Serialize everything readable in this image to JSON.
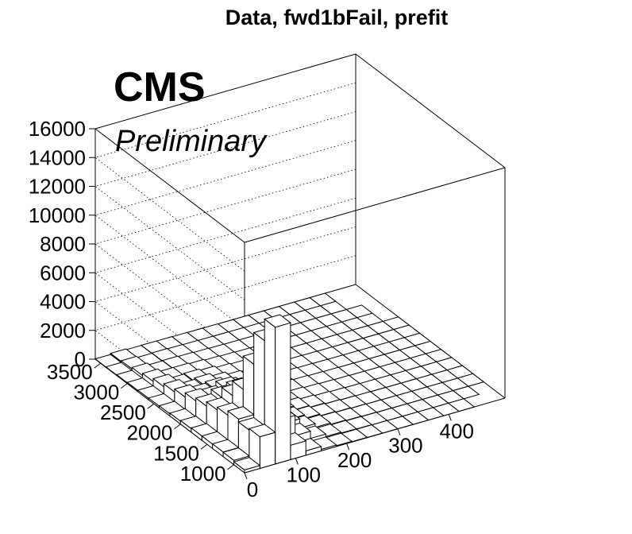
{
  "chart_data": {
    "type": "lego",
    "title": "Data, fwd1bFail, prefit",
    "labels": {
      "experiment": "CMS",
      "status": "Preliminary"
    },
    "zlim": [
      0,
      16000
    ],
    "zticks": [
      "0",
      "2000",
      "4000",
      "6000",
      "8000",
      "10000",
      "12000",
      "14000",
      "16000"
    ],
    "yticks": [
      "1000",
      "1500",
      "2000",
      "2500",
      "3000",
      "3500"
    ],
    "xticks": [
      "0",
      "100",
      "200",
      "300",
      "400"
    ],
    "x_bins": [
      0,
      30,
      60,
      90,
      120,
      150,
      180,
      210,
      240,
      270,
      300,
      330,
      360,
      390,
      420,
      450,
      480,
      510
    ],
    "y_bins": [
      800,
      1000,
      1200,
      1400,
      1600,
      1800,
      2000,
      2200,
      2400,
      2600,
      2800,
      3000,
      3200,
      3400,
      3600
    ],
    "counts": [
      [
        200,
        300,
        320,
        300,
        300,
        250,
        200,
        150,
        120,
        100,
        80,
        50,
        30,
        20
      ],
      [
        2200,
        2100,
        2300,
        2000,
        1800,
        1500,
        1300,
        1000,
        800,
        600,
        400,
        250,
        150,
        100
      ],
      [
        9500,
        8000,
        5800,
        3500,
        2500,
        1800,
        1200,
        800,
        500,
        300,
        200,
        100,
        60,
        40
      ],
      [
        1000,
        2200,
        3000,
        2700,
        2600,
        2000,
        1500,
        900,
        600,
        350,
        200,
        120,
        80,
        50
      ],
      [
        300,
        800,
        1100,
        1200,
        1300,
        1100,
        900,
        600,
        400,
        250,
        150,
        90,
        60,
        40
      ],
      [
        100,
        300,
        450,
        500,
        550,
        500,
        400,
        300,
        200,
        130,
        90,
        60,
        40,
        30
      ],
      [
        50,
        120,
        200,
        250,
        280,
        260,
        220,
        170,
        120,
        80,
        60,
        40,
        30,
        20
      ],
      [
        25,
        60,
        100,
        130,
        150,
        140,
        120,
        100,
        70,
        50,
        35,
        25,
        20,
        15
      ],
      [
        15,
        35,
        60,
        80,
        90,
        85,
        75,
        60,
        45,
        35,
        25,
        20,
        15,
        10
      ],
      [
        10,
        20,
        35,
        45,
        55,
        50,
        45,
        40,
        30,
        25,
        20,
        15,
        10,
        8
      ],
      [
        6,
        12,
        20,
        28,
        32,
        30,
        28,
        25,
        20,
        15,
        12,
        10,
        8,
        6
      ],
      [
        4,
        8,
        12,
        16,
        20,
        18,
        16,
        14,
        12,
        10,
        8,
        6,
        5,
        4
      ],
      [
        2,
        5,
        8,
        10,
        12,
        11,
        10,
        9,
        8,
        6,
        5,
        4,
        3,
        2
      ],
      [
        1,
        3,
        5,
        6,
        7,
        7,
        6,
        5,
        5,
        4,
        3,
        2,
        2,
        1
      ],
      [
        1,
        2,
        3,
        4,
        4,
        4,
        4,
        3,
        3,
        2,
        2,
        1,
        1,
        1
      ],
      [
        0,
        1,
        2,
        2,
        2,
        2,
        2,
        2,
        2,
        1,
        1,
        1,
        0,
        0
      ],
      [
        0,
        0,
        1,
        1,
        1,
        1,
        1,
        1,
        1,
        1,
        0,
        0,
        0,
        0
      ]
    ]
  }
}
